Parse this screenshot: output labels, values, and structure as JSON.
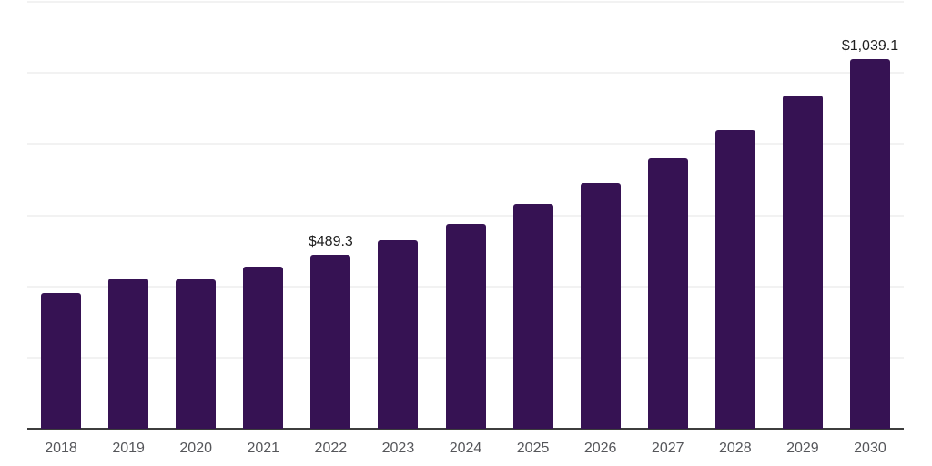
{
  "chart_data": {
    "type": "bar",
    "title": "",
    "xlabel": "",
    "ylabel": "",
    "categories": [
      "2018",
      "2019",
      "2020",
      "2021",
      "2022",
      "2023",
      "2024",
      "2025",
      "2026",
      "2027",
      "2028",
      "2029",
      "2030"
    ],
    "values": [
      381,
      423,
      419,
      455,
      489.3,
      530,
      577,
      632,
      690,
      761,
      840,
      937,
      1039.1
    ],
    "value_labels": [
      "",
      "",
      "",
      "",
      "$489.3",
      "",
      "",
      "",
      "",
      "",
      "",
      "",
      "$1,039.1"
    ],
    "ylim": [
      0,
      1200
    ],
    "gridline_interval": 200,
    "grid": "horizontal",
    "y_tick_labels": "none",
    "legend": "none",
    "colors": {
      "bar": "#361253",
      "gridline": "#f2f2f2",
      "axis_line": "#3d3d3d",
      "tick_label": "#55565a",
      "value_label": "#1e1e1e",
      "background": "#ffffff"
    }
  }
}
